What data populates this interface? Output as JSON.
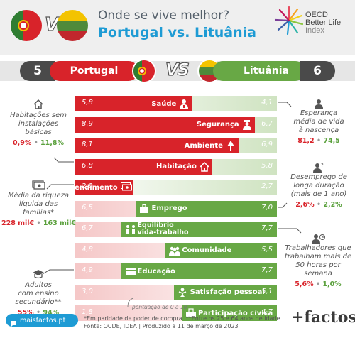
{
  "header": {
    "question": "Onde se vive melhor?",
    "title": "Portugal vs. Lituânia",
    "vs": "VS",
    "oecd_lines": [
      "OECD",
      "Better Life",
      "Index"
    ]
  },
  "score_band": {
    "left_score": "5",
    "left_name": "Portugal",
    "vs": "VS",
    "right_name": "Lituânia",
    "right_score": "6"
  },
  "colors": {
    "portugal_red": "#d8232a",
    "portugal_light": "#f5c7c7",
    "lithuania_green": "#68a845",
    "lithuania_light": "#cfe3c1",
    "accent_blue": "#1e9bd4",
    "dark": "#4a4a4a"
  },
  "chart_data": {
    "type": "bar",
    "scale_note": "pontuação de 0 a 10",
    "rows": [
      {
        "label": "Saúde",
        "icon": "doctor-icon",
        "portugal": "5,8",
        "lithuania": "4,1",
        "pt_value": 5.8,
        "lt_value": 4.1,
        "winner": "portugal"
      },
      {
        "label": "Segurança",
        "icon": "police-icon",
        "portugal": "8,9",
        "lithuania": "6,7",
        "pt_value": 8.9,
        "lt_value": 6.7,
        "winner": "portugal"
      },
      {
        "label": "Ambiente",
        "icon": "tree-icon",
        "portugal": "8,1",
        "lithuania": "6,9",
        "pt_value": 8.1,
        "lt_value": 6.9,
        "winner": "portugal"
      },
      {
        "label": "Habitação",
        "icon": "house-icon",
        "portugal": "6,8",
        "lithuania": "5,8",
        "pt_value": 6.8,
        "lt_value": 5.8,
        "winner": "portugal"
      },
      {
        "label": "Rendimento",
        "icon": "money-icon",
        "portugal": "2,9",
        "lithuania": "2,7",
        "pt_value": 2.9,
        "lt_value": 2.7,
        "winner": "portugal"
      },
      {
        "label": "Emprego",
        "icon": "briefcase-icon",
        "portugal": "6,5",
        "lithuania": "7,0",
        "pt_value": 6.5,
        "lt_value": 7.0,
        "winner": "lithuania"
      },
      {
        "label": "Equilíbrio\nvida-trabalho",
        "icon": "balance-icon",
        "portugal": "6,7",
        "lithuania": "7,7",
        "pt_value": 6.7,
        "lt_value": 7.7,
        "winner": "lithuania"
      },
      {
        "label": "Comunidade",
        "icon": "people-icon",
        "portugal": "4,8",
        "lithuania": "5,5",
        "pt_value": 4.8,
        "lt_value": 5.5,
        "winner": "lithuania"
      },
      {
        "label": "Educação",
        "icon": "books-icon",
        "portugal": "4,9",
        "lithuania": "7,7",
        "pt_value": 4.9,
        "lt_value": 7.7,
        "winner": "lithuania"
      },
      {
        "label": "Satisfação pessoal",
        "icon": "smile-icon",
        "portugal": "3,0",
        "lithuania": "5,1",
        "pt_value": 3.0,
        "lt_value": 5.1,
        "winner": "lithuania"
      },
      {
        "label": "Participação cívica",
        "icon": "ballot-icon",
        "portugal": "1,8",
        "lithuania": "4,7",
        "pt_value": 1.8,
        "lt_value": 4.7,
        "winner": "lithuania"
      }
    ]
  },
  "notes": {
    "left": [
      {
        "text": "Habitações sem\ninstalações\nbásicas",
        "pt": "0,9%",
        "lt": "11,8%",
        "icon": "house-icon"
      },
      {
        "text": "Média da riqueza\nlíquida das\nfamílias*",
        "pt": "228 mil€",
        "lt": "163 mil€",
        "icon": "money-icon"
      },
      {
        "text": "Adultos\ncom ensino\nsecundário**",
        "pt": "55%",
        "lt": "94%",
        "icon": "graduation-icon"
      }
    ],
    "right": [
      {
        "text": "Esperança\nmédia de vida\nà nascença",
        "pt": "81,2",
        "lt": "74,5",
        "icon": "person-icon"
      },
      {
        "text": "Desemprego de\nlonga duração\n(mais de 1 ano)",
        "pt": "2,6%",
        "lt": "2,2%",
        "icon": "person-question-icon"
      },
      {
        "text": "Trabalhadores que\ntrabalham mais de\n50 horas por\nsemana",
        "pt": "5,6%",
        "lt": "1,0%",
        "icon": "worker-icon"
      }
    ],
    "separator": "•"
  },
  "footer": {
    "site": "maisfactos.pt",
    "note1": "*Em paridade de poder de compra. **Entre os 25 e 64 anos de idade.",
    "note2": "Fonte: OCDE, IDEA | Produzido a 11 de março de 2023",
    "brand": "+factos"
  }
}
